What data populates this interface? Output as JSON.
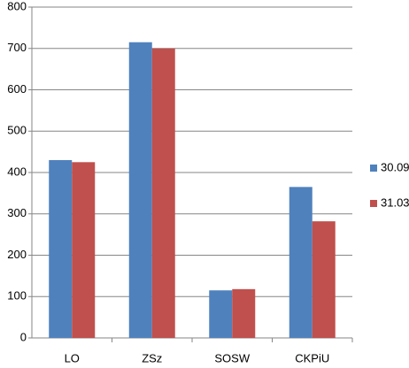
{
  "chart_data": {
    "type": "bar",
    "categories": [
      "LO",
      "ZSz",
      "SOSW",
      "CKPiU"
    ],
    "series": [
      {
        "name": "30.09",
        "color": "#4f81bd",
        "values": [
          430,
          715,
          115,
          365
        ]
      },
      {
        "name": "31.03",
        "color": "#c0504d",
        "values": [
          425,
          700,
          118,
          282
        ]
      }
    ],
    "ylim": [
      0,
      800
    ],
    "yticks": [
      0,
      100,
      200,
      300,
      400,
      500,
      600,
      700,
      800
    ],
    "grid": true,
    "legend": "right"
  }
}
